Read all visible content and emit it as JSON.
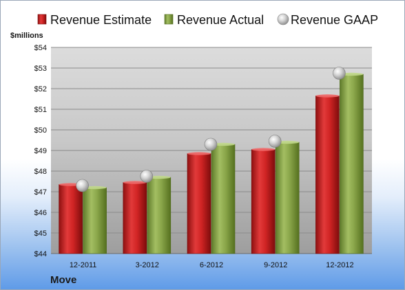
{
  "chart_data": {
    "type": "bar",
    "unit_label": "$millions",
    "company": "Move",
    "categories": [
      "12-2011",
      "3-2012",
      "6-2012",
      "9-2012",
      "12-2012"
    ],
    "series": [
      {
        "name": "Revenue Estimate",
        "kind": "bar",
        "color": "#d42a2a",
        "values": [
          47.35,
          47.45,
          48.85,
          49.05,
          51.65
        ]
      },
      {
        "name": "Revenue Actual",
        "kind": "bar",
        "color": "#8fac4c",
        "values": [
          47.2,
          47.7,
          49.3,
          49.4,
          52.7
        ]
      },
      {
        "name": "Revenue GAAP",
        "kind": "marker",
        "color": "#b8b8b8",
        "values": [
          47.3,
          47.75,
          49.3,
          49.45,
          52.75
        ]
      }
    ],
    "ylim": [
      44,
      54
    ],
    "yticks": [
      "$44",
      "$45",
      "$46",
      "$47",
      "$48",
      "$49",
      "$50",
      "$51",
      "$52",
      "$53",
      "$54"
    ],
    "legend_position": "top",
    "grid": true
  }
}
